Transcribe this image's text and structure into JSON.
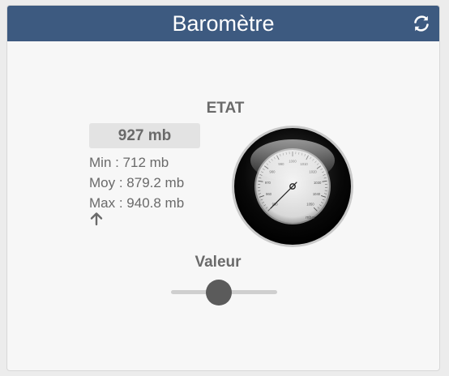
{
  "widget": {
    "title": "Baromètre",
    "refresh_icon": "refresh-icon"
  },
  "state": {
    "label": "ETAT",
    "value": "927 mb",
    "min": "Min : 712 mb",
    "avg": "Moy : 879.2 mb",
    "max": "Max : 940.8 mb",
    "trend_icon": "arrow-up-icon"
  },
  "gauge": {
    "unit": "mbar",
    "ticks": [
      "950",
      "960",
      "970",
      "980",
      "990",
      "1000",
      "1010",
      "1020",
      "1030",
      "1040",
      "1050"
    ],
    "value": 927,
    "min": 950,
    "max": 1050
  },
  "control": {
    "label": "Valeur",
    "slider_fraction": 0.45
  },
  "colors": {
    "header": "#3d5a80",
    "text": "#6a6a6a"
  }
}
